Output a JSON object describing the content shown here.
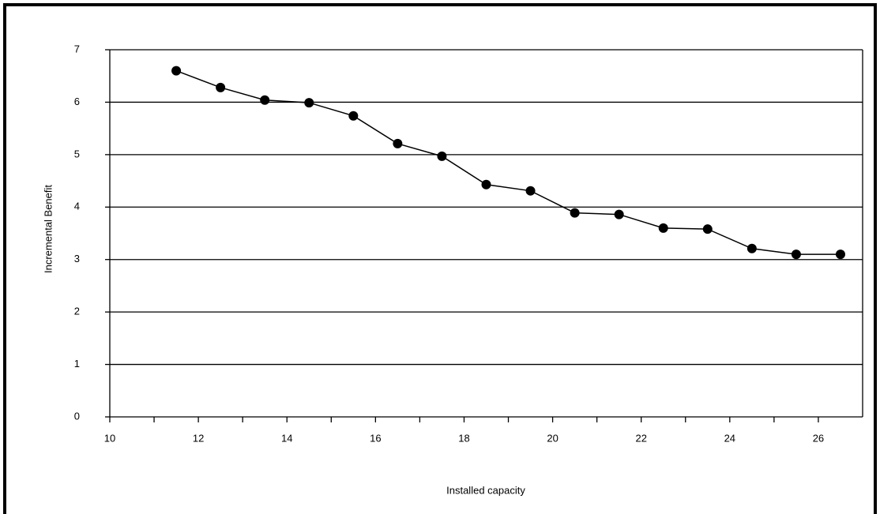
{
  "chart_data": {
    "type": "line",
    "x_label": "Installed capacity",
    "y_label": "Incremental Benefit",
    "x": [
      11.5,
      12.5,
      13.5,
      14.5,
      15.5,
      16.5,
      17.5,
      18.5,
      19.5,
      20.5,
      21.5,
      22.5,
      23.5,
      24.5,
      25.5,
      26.5
    ],
    "series": [
      {
        "color": "#000000",
        "values": [
          6.6,
          6.28,
          6.04,
          5.99,
          5.74,
          5.21,
          4.97,
          4.43,
          4.31,
          3.89,
          3.86,
          3.6,
          3.58,
          3.21,
          3.1,
          3.1
        ]
      }
    ],
    "xlim": [
      10,
      27
    ],
    "xticks": [
      10,
      12,
      14,
      16,
      18,
      20,
      22,
      24,
      26
    ],
    "xminorticks": [
      11,
      13,
      15,
      17,
      19,
      21,
      23,
      25
    ],
    "ylim": [
      0,
      7
    ],
    "yticks": [
      0,
      1,
      2,
      3,
      4,
      5,
      6,
      7
    ],
    "grid": true
  }
}
